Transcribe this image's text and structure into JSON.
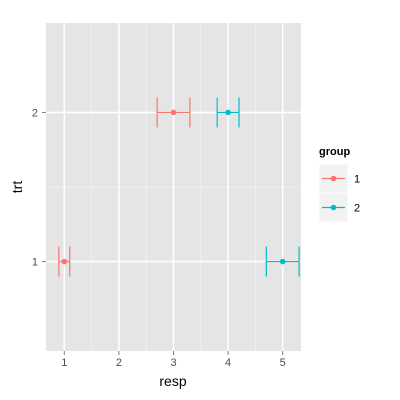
{
  "chart_data": {
    "type": "scatter",
    "error_bars": "horizontal",
    "xlabel": "resp",
    "ylabel": "trt",
    "x_ticks": [
      1,
      2,
      3,
      4,
      5
    ],
    "y_ticks": [
      "1",
      "2"
    ],
    "xlim": [
      0.665,
      5.335
    ],
    "ylim": [
      0.4,
      2.6
    ],
    "grid": true,
    "legend_position": "right",
    "legend": {
      "title": "group",
      "entries": [
        {
          "label": "1",
          "color": "#F8766D"
        },
        {
          "label": "2",
          "color": "#00BFC4"
        }
      ]
    },
    "series": [
      {
        "group": "1",
        "color": "#F8766D",
        "points": [
          {
            "trt": "1",
            "resp": 1,
            "lower": 0.9,
            "upper": 1.1
          },
          {
            "trt": "2",
            "resp": 3,
            "lower": 2.7,
            "upper": 3.3
          }
        ]
      },
      {
        "group": "2",
        "color": "#00BFC4",
        "points": [
          {
            "trt": "1",
            "resp": 5,
            "lower": 4.7,
            "upper": 5.3
          },
          {
            "trt": "2",
            "resp": 4,
            "lower": 3.8,
            "upper": 4.2
          }
        ]
      }
    ]
  }
}
